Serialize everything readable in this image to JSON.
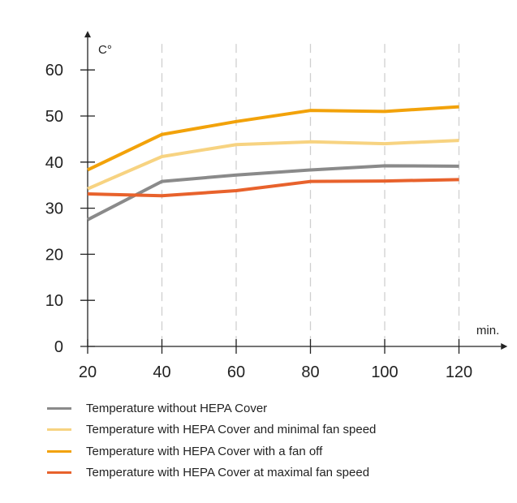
{
  "chart_data": {
    "type": "line",
    "title": "",
    "xlabel": "min.",
    "ylabel": "C°",
    "x": [
      20,
      40,
      60,
      80,
      100,
      120
    ],
    "xlim": [
      20,
      130
    ],
    "ylim": [
      0,
      66
    ],
    "yticks": [
      0,
      10,
      20,
      30,
      40,
      50,
      60
    ],
    "xticks": [
      20,
      40,
      60,
      80,
      100,
      120
    ],
    "vertical_grid": true,
    "grid_style": "dashed",
    "legend_position": "bottom",
    "series": [
      {
        "name": "Temperature without HEPA Cover",
        "color": "#8a8a8a",
        "values": [
          27.5,
          35.8,
          37.2,
          38.3,
          39.2,
          39.1
        ]
      },
      {
        "name": "Temperature with HEPA Cover and minimal fan speed",
        "color": "#f7d381",
        "values": [
          34.2,
          41.2,
          43.8,
          44.4,
          44.0,
          44.7
        ]
      },
      {
        "name": "Temperature with HEPA Cover with a fan off",
        "color": "#f2a20a",
        "values": [
          38.3,
          46.0,
          48.8,
          51.2,
          51.0,
          52.0
        ]
      },
      {
        "name": "Temperature with HEPA Cover at maximal fan speed",
        "color": "#e8622c",
        "values": [
          33.1,
          32.7,
          33.8,
          35.8,
          35.9,
          36.2
        ]
      }
    ]
  }
}
